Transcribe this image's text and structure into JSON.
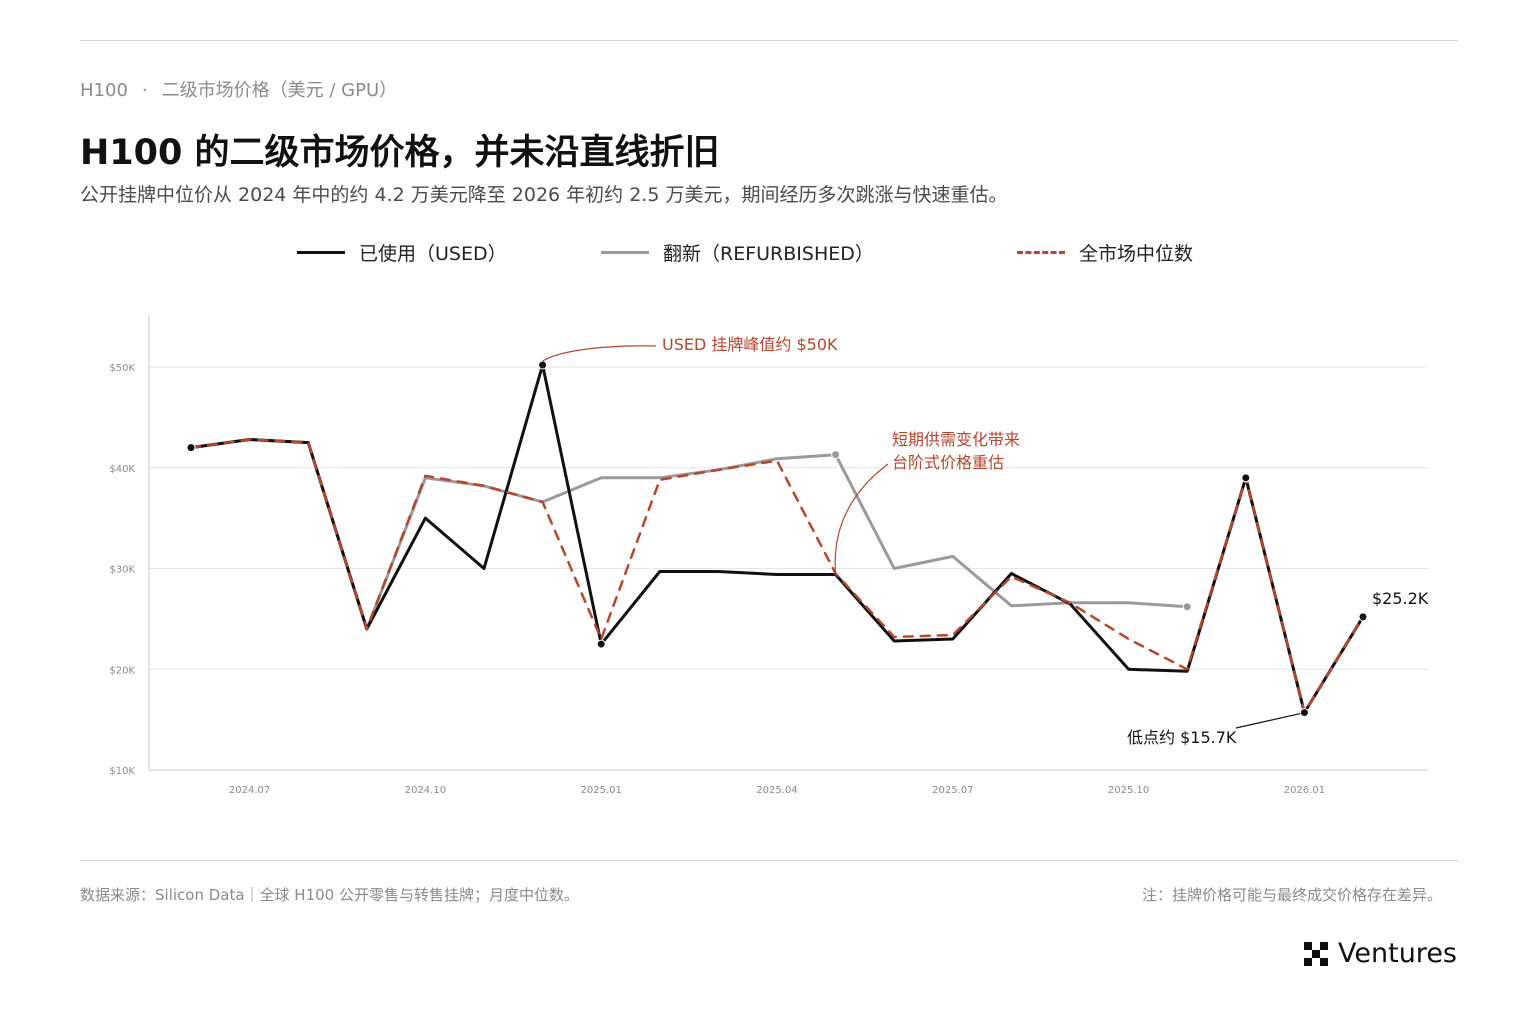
{
  "header": {
    "kicker_model": "H100",
    "kicker_sep": "·",
    "kicker_text": "二级市场价格（美元 / GPU）",
    "title": "H100 的二级市场价格，并未沿直线折旧",
    "subtitle": "公开挂牌中位价从 2024 年中的约 4.2 万美元降至 2026 年初约 2.5 万美元，期间经历多次跳涨与快速重估。"
  },
  "legend": {
    "used": "已使用（USED）",
    "refurbished": "翻新（REFURBISHED）",
    "market": "全市场中位数"
  },
  "colors": {
    "used": "#111111",
    "refurbished": "#9a9a9a",
    "market": "#b5462f",
    "grid": "#e6e6e6",
    "axis": "#c8c8c8"
  },
  "chart_data": {
    "type": "line",
    "ylim": [
      10,
      55
    ],
    "y_ticks": [
      {
        "value": 10,
        "label": "$10K"
      },
      {
        "value": 20,
        "label": "$20K"
      },
      {
        "value": 30,
        "label": "$30K"
      },
      {
        "value": 40,
        "label": "$40K"
      },
      {
        "value": 50,
        "label": "$50K"
      }
    ],
    "x_ticks": [
      {
        "x": 1,
        "label": "2024.07"
      },
      {
        "x": 4,
        "label": "2024.10"
      },
      {
        "x": 7,
        "label": "2025.01"
      },
      {
        "x": 10,
        "label": "2025.04"
      },
      {
        "x": 13,
        "label": "2025.07"
      },
      {
        "x": 16,
        "label": "2025.10"
      },
      {
        "x": 19,
        "label": "2026.01"
      }
    ],
    "grid": true,
    "legend_position": "top",
    "series": [
      {
        "name": "已使用（USED）",
        "key": "used",
        "x": [
          0,
          1,
          2,
          3,
          4,
          5,
          6,
          7,
          8,
          9,
          10,
          11,
          12,
          13,
          14,
          15,
          16,
          17,
          18,
          19,
          20
        ],
        "values": [
          42,
          42.8,
          42.5,
          24,
          35,
          30,
          50.2,
          22.5,
          29.7,
          29.7,
          29.4,
          29.4,
          22.8,
          23,
          29.5,
          26.5,
          20,
          19.8,
          39,
          15.7,
          25.2
        ]
      },
      {
        "name": "翻新（REFURBISHED）",
        "key": "refurbished",
        "x": [
          0,
          1,
          2,
          3,
          4,
          5,
          6,
          7,
          8,
          9,
          10,
          11,
          12,
          13,
          14,
          15,
          16,
          17
        ],
        "values": [
          42,
          42.8,
          42.5,
          24,
          39,
          38.2,
          36.6,
          39,
          39,
          39.8,
          40.9,
          41.3,
          30,
          31.2,
          26.3,
          26.6,
          26.6,
          26.2
        ]
      },
      {
        "name": "全市场中位数",
        "key": "market",
        "x": [
          0,
          1,
          2,
          3,
          4,
          5,
          6,
          7,
          8,
          9,
          10,
          11,
          12,
          13,
          14,
          15,
          16,
          17,
          18,
          19,
          20
        ],
        "values": [
          42,
          42.8,
          42.5,
          24,
          39.2,
          38.2,
          36.6,
          23,
          38.8,
          39.8,
          40.7,
          29.5,
          23.2,
          23.4,
          29.2,
          26.6,
          23,
          20,
          39,
          15.7,
          25.2
        ]
      }
    ],
    "markers": [
      {
        "series": "used",
        "x": 0,
        "y": 42
      },
      {
        "series": "used",
        "x": 6,
        "y": 50.2
      },
      {
        "series": "used",
        "x": 7,
        "y": 22.5
      },
      {
        "series": "used",
        "x": 18,
        "y": 39
      },
      {
        "series": "used",
        "x": 19,
        "y": 15.7
      },
      {
        "series": "used",
        "x": 20,
        "y": 25.2
      },
      {
        "series": "refurbished",
        "x": 11,
        "y": 41.3
      },
      {
        "series": "refurbished",
        "x": 17,
        "y": 26.2
      }
    ],
    "annotations": {
      "peak": "USED 挂牌峰值约 $50K",
      "shift_line1": "短期供需变化带来",
      "shift_line2": "台阶式价格重估",
      "low": "低点约 $15.7K",
      "last": "$25.2K"
    }
  },
  "footer": {
    "source": "数据来源：Silicon Data｜全球 H100 公开零售与转售挂牌；月度中位数。",
    "note": "注：挂牌价格可能与最终成交价格存在差异。",
    "brand": "Ventures"
  }
}
